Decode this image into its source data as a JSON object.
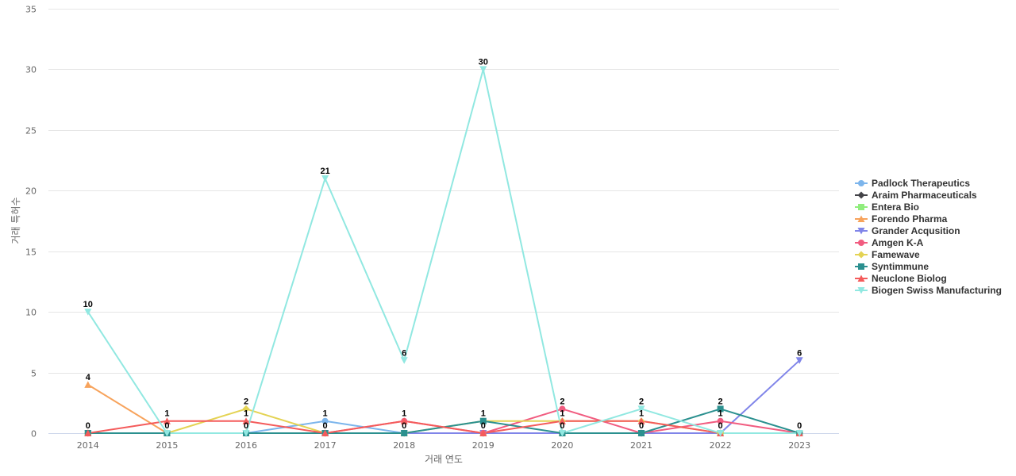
{
  "chart_data": {
    "type": "line",
    "xlabel": "거래 연도",
    "ylabel": "거래 특허수",
    "ylim": [
      0,
      35
    ],
    "yticks": [
      0,
      5,
      10,
      15,
      20,
      25,
      30,
      35
    ],
    "grid": true,
    "legend_position": "right",
    "categories": [
      "2014",
      "2015",
      "2016",
      "2017",
      "2018",
      "2019",
      "2020",
      "2021",
      "2022",
      "2023"
    ],
    "series": [
      {
        "name": "Padlock Therapeutics",
        "color": "#7cb5ec",
        "marker": "circle",
        "values": [
          0,
          0,
          0,
          1,
          0,
          0,
          0,
          0,
          0,
          0
        ]
      },
      {
        "name": "Araim Pharmaceuticals",
        "color": "#434348",
        "marker": "diamond",
        "values": [
          0,
          0,
          0,
          0,
          0,
          0,
          0,
          0,
          0,
          0
        ]
      },
      {
        "name": "Entera Bio",
        "color": "#90ed7d",
        "marker": "square",
        "values": [
          0,
          0,
          0,
          0,
          0,
          0,
          0,
          0,
          0,
          0
        ]
      },
      {
        "name": "Forendo Pharma",
        "color": "#f7a35c",
        "marker": "triangle",
        "values": [
          4,
          0,
          0,
          0,
          0,
          0,
          0,
          0,
          0,
          0
        ]
      },
      {
        "name": "Grander Acqusition",
        "color": "#8085e9",
        "marker": "triangle-down",
        "values": [
          0,
          0,
          0,
          0,
          0,
          0,
          0,
          0,
          0,
          6
        ]
      },
      {
        "name": "Amgen K-A",
        "color": "#f15c80",
        "marker": "circle",
        "values": [
          0,
          0,
          0,
          0,
          1,
          0,
          2,
          0,
          1,
          0
        ]
      },
      {
        "name": "Famewave",
        "color": "#e4d354",
        "marker": "diamond",
        "values": [
          0,
          0,
          2,
          0,
          0,
          1,
          1,
          1,
          0,
          0
        ]
      },
      {
        "name": "Syntimmune",
        "color": "#2b908f",
        "marker": "square",
        "values": [
          0,
          0,
          0,
          0,
          0,
          1,
          0,
          0,
          2,
          0
        ]
      },
      {
        "name": "Neuclone Biolog",
        "color": "#f45b5b",
        "marker": "triangle",
        "values": [
          0,
          1,
          1,
          0,
          1,
          0,
          1,
          1,
          0,
          0
        ]
      },
      {
        "name": "Biogen Swiss Manufacturing",
        "color": "#91e8e1",
        "marker": "triangle-down",
        "values": [
          10,
          0,
          0,
          21,
          6,
          30,
          0,
          2,
          0,
          0
        ]
      }
    ],
    "data_labels": [
      {
        "x": "2014",
        "value": 10
      },
      {
        "x": "2014",
        "value": 4
      },
      {
        "x": "2014",
        "value": 0
      },
      {
        "x": "2015",
        "value": 1
      },
      {
        "x": "2015",
        "value": 0
      },
      {
        "x": "2016",
        "value": 2
      },
      {
        "x": "2016",
        "value": 1
      },
      {
        "x": "2016",
        "value": 0
      },
      {
        "x": "2017",
        "value": 21
      },
      {
        "x": "2017",
        "value": 1
      },
      {
        "x": "2017",
        "value": 0
      },
      {
        "x": "2018",
        "value": 6
      },
      {
        "x": "2018",
        "value": 1
      },
      {
        "x": "2018",
        "value": 0
      },
      {
        "x": "2019",
        "value": 30
      },
      {
        "x": "2019",
        "value": 1
      },
      {
        "x": "2019",
        "value": 0
      },
      {
        "x": "2020",
        "value": 2
      },
      {
        "x": "2020",
        "value": 1
      },
      {
        "x": "2020",
        "value": 0
      },
      {
        "x": "2021",
        "value": 2
      },
      {
        "x": "2021",
        "value": 1
      },
      {
        "x": "2021",
        "value": 0
      },
      {
        "x": "2022",
        "value": 2
      },
      {
        "x": "2022",
        "value": 1
      },
      {
        "x": "2022",
        "value": 0
      },
      {
        "x": "2023",
        "value": 6
      },
      {
        "x": "2023",
        "value": 0
      }
    ]
  }
}
